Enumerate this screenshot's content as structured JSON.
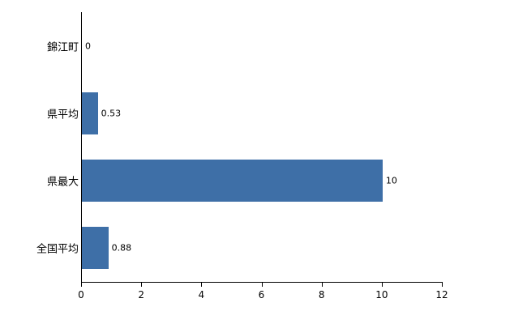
{
  "chart_data": {
    "type": "bar",
    "orientation": "horizontal",
    "title": "",
    "xlabel": "",
    "ylabel": "",
    "categories": [
      "錦江町",
      "県平均",
      "県最大",
      "全国平均"
    ],
    "values": [
      0,
      0.53,
      10,
      0.88
    ],
    "value_labels": [
      "0",
      "0.53",
      "10",
      "0.88"
    ],
    "xlim": [
      0,
      12
    ],
    "x_ticks": [
      "0",
      "2",
      "4",
      "6",
      "8",
      "10",
      "12"
    ],
    "bar_color": "#3e6fa7",
    "grid": "off",
    "legend": "none"
  }
}
